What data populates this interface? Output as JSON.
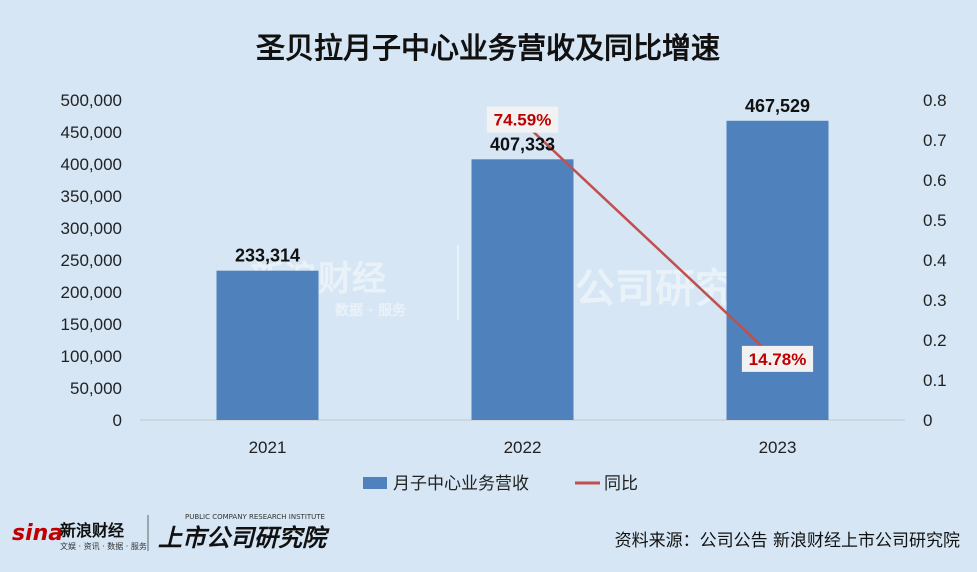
{
  "chart_data": {
    "type": "bar",
    "title": "圣贝拉月子中心业务营收及同比增速",
    "categories": [
      "2021",
      "2022",
      "2023"
    ],
    "series": [
      {
        "name": "月子中心业务营收",
        "type": "bar",
        "axis": "left",
        "values": [
          233314,
          407333,
          467529
        ],
        "labels": [
          "233,314",
          "407,333",
          "467,529"
        ]
      },
      {
        "name": "同比",
        "type": "line",
        "axis": "right",
        "values": [
          null,
          0.7459,
          0.1478
        ],
        "labels": [
          "",
          "74.59%",
          "14.78%"
        ]
      }
    ],
    "y_left": {
      "ylim": [
        0,
        500000
      ],
      "ticks": [
        "0",
        "50,000",
        "100,000",
        "150,000",
        "200,000",
        "250,000",
        "300,000",
        "350,000",
        "400,000",
        "450,000",
        "500,000"
      ]
    },
    "y_right": {
      "ylim": [
        0,
        0.8
      ],
      "ticks": [
        "0",
        "0.1",
        "0.2",
        "0.3",
        "0.4",
        "0.5",
        "0.6",
        "0.7",
        "0.8"
      ]
    },
    "grid": false,
    "legend": "bottom",
    "colors": {
      "bar": "#4f81bd",
      "line": "#c0504d",
      "pct_label": "#c00000",
      "background": "#d6e6f4"
    }
  },
  "source": "资料来源：公司公告 新浪财经上市公司研究院",
  "logo": {
    "sina": "新浪财经",
    "sina_sub": "文娱 · 资讯 · 数据 · 服务",
    "institute": "上市公司研究院",
    "institute_sub": "PUBLIC COMPANY RESEARCH INSTITUTE"
  },
  "watermark": {
    "brand": "新浪财经",
    "sub": "数据 · 服务",
    "institute": "公司研究"
  }
}
